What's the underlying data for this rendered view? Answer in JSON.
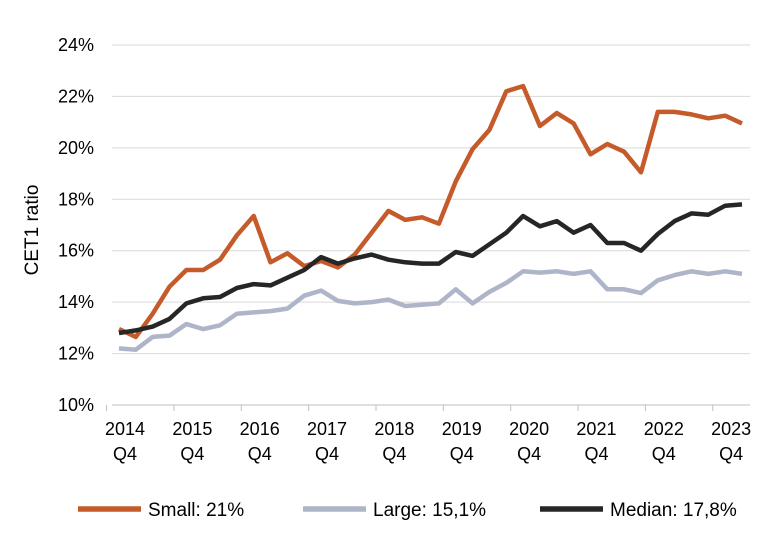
{
  "chart_data": {
    "type": "line",
    "title": "",
    "xlabel": "",
    "ylabel": "CET1 ratio",
    "ylim": [
      10,
      24
    ],
    "y_ticks": [
      "10%",
      "12%",
      "14%",
      "16%",
      "18%",
      "20%",
      "22%",
      "24%"
    ],
    "y_tick_values": [
      10,
      12,
      14,
      16,
      18,
      20,
      22,
      24
    ],
    "grid": "horizontal",
    "legend_position": "bottom",
    "x_tick_labels": [
      {
        "year": "2014",
        "quarter": "Q4",
        "index": 0
      },
      {
        "year": "2015",
        "quarter": "Q4",
        "index": 4
      },
      {
        "year": "2016",
        "quarter": "Q4",
        "index": 8
      },
      {
        "year": "2017",
        "quarter": "Q4",
        "index": 12
      },
      {
        "year": "2018",
        "quarter": "Q4",
        "index": 16
      },
      {
        "year": "2019",
        "quarter": "Q4",
        "index": 20
      },
      {
        "year": "2020",
        "quarter": "Q4",
        "index": 24
      },
      {
        "year": "2021",
        "quarter": "Q4",
        "index": 28
      },
      {
        "year": "2022",
        "quarter": "Q4",
        "index": 32
      },
      {
        "year": "2023",
        "quarter": "Q4",
        "index": 36
      }
    ],
    "num_points": 38,
    "series": [
      {
        "name": "Small: 21%",
        "color": "#C55A2B",
        "values": [
          12.95,
          12.65,
          13.55,
          14.6,
          15.25,
          15.25,
          15.65,
          16.6,
          17.35,
          15.55,
          15.9,
          15.4,
          15.6,
          15.35,
          15.85,
          16.7,
          17.55,
          17.2,
          17.3,
          17.05,
          18.7,
          19.95,
          20.7,
          22.2,
          22.4,
          20.85,
          21.35,
          20.95,
          19.75,
          20.15,
          19.85,
          19.05,
          21.4,
          21.4,
          21.3,
          21.15,
          21.25,
          20.95
        ]
      },
      {
        "name": "Large: 15,1%",
        "color": "#AEB5C9",
        "values": [
          12.2,
          12.15,
          12.65,
          12.7,
          13.15,
          12.95,
          13.1,
          13.55,
          13.6,
          13.65,
          13.75,
          14.25,
          14.45,
          14.05,
          13.95,
          14.0,
          14.1,
          13.85,
          13.9,
          13.95,
          14.5,
          13.95,
          14.4,
          14.75,
          15.2,
          15.15,
          15.2,
          15.1,
          15.2,
          14.5,
          14.5,
          14.35,
          14.85,
          15.05,
          15.2,
          15.1,
          15.2,
          15.1
        ]
      },
      {
        "name": "Median: 17,8%",
        "color": "#262626",
        "values": [
          12.8,
          12.9,
          13.05,
          13.35,
          13.95,
          14.15,
          14.2,
          14.55,
          14.7,
          14.65,
          14.95,
          15.25,
          15.75,
          15.5,
          15.7,
          15.85,
          15.65,
          15.55,
          15.5,
          15.5,
          15.95,
          15.8,
          16.25,
          16.7,
          17.35,
          16.95,
          17.15,
          16.7,
          17.0,
          16.3,
          16.3,
          16.0,
          16.65,
          17.15,
          17.45,
          17.4,
          17.75,
          17.8
        ]
      }
    ]
  }
}
